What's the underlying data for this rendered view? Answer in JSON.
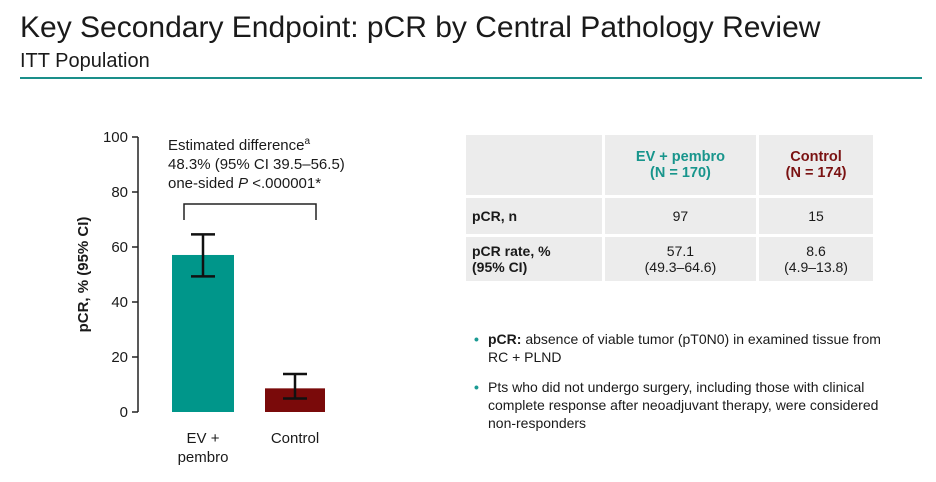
{
  "header": {
    "title": "Key Secondary Endpoint: pCR by Central Pathology Review",
    "subtitle": "ITT Population"
  },
  "colors": {
    "ev": "#00968a",
    "control": "#7a0a0a",
    "accent_rule": "#1a8f8a",
    "teal_text": "#18958c",
    "maroon_text": "#7a1212"
  },
  "chart_data": {
    "type": "bar",
    "ylabel": "pCR, % (95% CI)",
    "ylim": [
      0,
      100
    ],
    "yticks": [
      "0",
      "20",
      "40",
      "60",
      "80",
      "100"
    ],
    "categories": [
      {
        "line1": "EV +",
        "line2": "pembro"
      },
      {
        "line1": "Control",
        "line2": ""
      }
    ],
    "values": [
      57.1,
      8.6
    ],
    "ci": [
      [
        49.3,
        64.6
      ],
      [
        4.9,
        13.8
      ]
    ],
    "bar_colors": [
      "#00968a",
      "#7a0a0a"
    ],
    "annotation": {
      "line1": "Estimated difference",
      "sup": "a",
      "line2": "48.3% (95% CI 39.5–56.5)",
      "line3_prefix": "one-sided ",
      "line3_italic": "P",
      "line3_suffix": " <.000001*"
    }
  },
  "table": {
    "headers": [
      {
        "line1": "EV + pembro",
        "line2": "(N = 170)"
      },
      {
        "line1": "Control",
        "line2": "(N = 174)"
      }
    ],
    "rows": [
      {
        "label1": "pCR, n",
        "label2": "",
        "ev1": "97",
        "ev2": "",
        "ct1": "15",
        "ct2": ""
      },
      {
        "label1": "pCR rate, %",
        "label2": "(95% CI)",
        "ev1": "57.1",
        "ev2": "(49.3–64.6)",
        "ct1": "8.6",
        "ct2": "(4.9–13.8)"
      }
    ]
  },
  "notes": {
    "n1_bold": "pCR:",
    "n1_text": " absence of viable tumor (pT0N0) in examined tissue from RC + PLND",
    "n2_text": "Pts who did not undergo surgery, including those with clinical complete response after neoadjuvant therapy, were considered non-responders"
  }
}
